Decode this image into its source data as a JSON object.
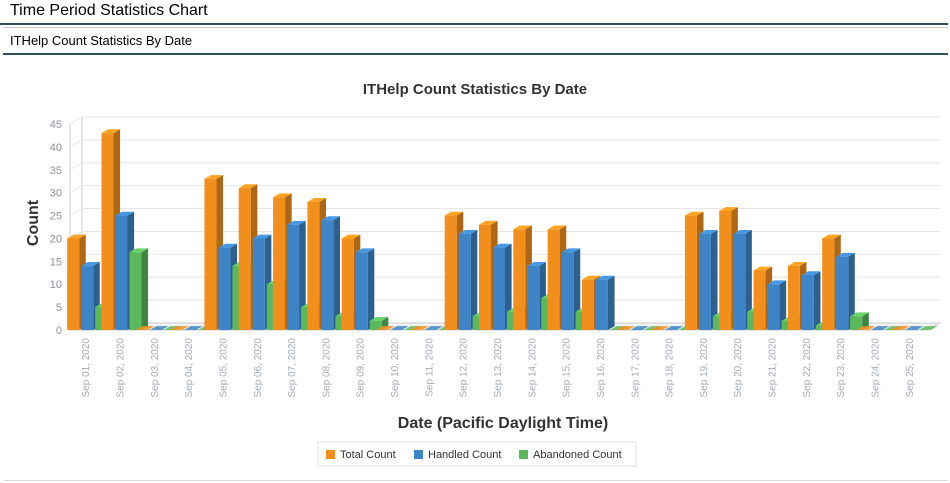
{
  "header": {
    "title": "Time Period Statistics Chart"
  },
  "subheader": {
    "title": "ITHelp Count Statistics By Date"
  },
  "chart_data": {
    "type": "bar",
    "title": "ITHelp Count Statistics By Date",
    "xlabel": "Date (Pacific Daylight Time)",
    "ylabel": "Count",
    "ylim": [
      0,
      45
    ],
    "yticks": [
      0,
      5,
      10,
      15,
      20,
      25,
      30,
      35,
      40,
      45
    ],
    "grid": true,
    "legend_position": "bottom-center",
    "categories": [
      "Sep 01, 2020",
      "Sep 02, 2020",
      "Sep 03, 2020",
      "Sep 04, 2020",
      "Sep 05, 2020",
      "Sep 06, 2020",
      "Sep 07, 2020",
      "Sep 08, 2020",
      "Sep 09, 2020",
      "Sep 10, 2020",
      "Sep 11, 2020",
      "Sep 12, 2020",
      "Sep 13, 2020",
      "Sep 14, 2020",
      "Sep 15, 2020",
      "Sep 16, 2020",
      "Sep 17, 2020",
      "Sep 18, 2020",
      "Sep 19, 2020",
      "Sep 20, 2020",
      "Sep 21, 2020",
      "Sep 22, 2020",
      "Sep 23, 2020",
      "Sep 24, 2020",
      "Sep 25, 2020"
    ],
    "series": [
      {
        "name": "Total Count",
        "color": "#f28f1c",
        "values": [
          20,
          43,
          0,
          0,
          33,
          31,
          29,
          28,
          20,
          0,
          0,
          25,
          23,
          22,
          22,
          11,
          0,
          0,
          25,
          26,
          13,
          14,
          20,
          0,
          0
        ]
      },
      {
        "name": "Handled Count",
        "color": "#3d85c6",
        "values": [
          14,
          25,
          0,
          0,
          18,
          20,
          23,
          24,
          17,
          0,
          0,
          21,
          18,
          14,
          17,
          11,
          0,
          0,
          21,
          21,
          10,
          12,
          16,
          0,
          0
        ]
      },
      {
        "name": "Abandoned Count",
        "color": "#5cb85c",
        "values": [
          5,
          17,
          0,
          0,
          14,
          10,
          5,
          3,
          2,
          0,
          0,
          3,
          4,
          7,
          4,
          0,
          0,
          0,
          3,
          4,
          2,
          1,
          3,
          0,
          0
        ]
      }
    ]
  }
}
